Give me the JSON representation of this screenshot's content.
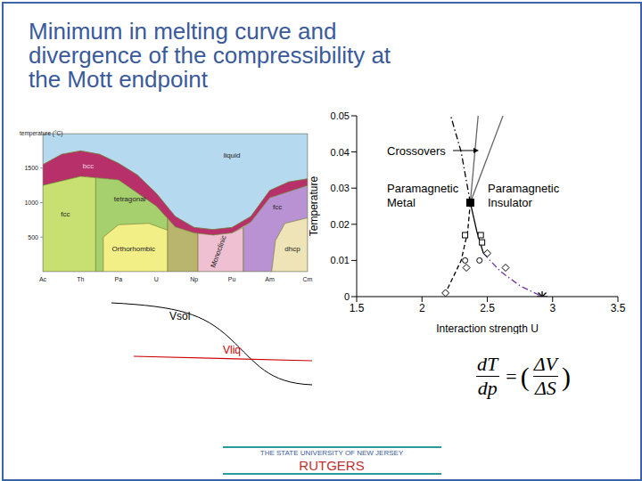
{
  "title": [
    "Minimum in melting curve and",
    "divergence of the compressibility at",
    "the Mott endpoint"
  ],
  "phase_diagram": {
    "y_label": "temperature (°C)",
    "xlim": [
      0,
      7
    ],
    "ylim": [
      0,
      2000
    ],
    "yticks": [
      500,
      1000,
      1500
    ],
    "elements": [
      "Ac",
      "Th",
      "Pa",
      "U",
      "Np",
      "Pu",
      "Am",
      "Cm"
    ],
    "regions": [
      {
        "label": "liquid",
        "color": "#b5d9ee",
        "points": [
          [
            0,
            1550
          ],
          [
            0.5,
            1700
          ],
          [
            1,
            1750
          ],
          [
            1.5,
            1700
          ],
          [
            2,
            1570
          ],
          [
            2.5,
            1400
          ],
          [
            3,
            1135
          ],
          [
            3.5,
            800
          ],
          [
            4,
            640
          ],
          [
            4.5,
            610
          ],
          [
            5,
            640
          ],
          [
            5.5,
            800
          ],
          [
            6,
            1176
          ],
          [
            6.5,
            1300
          ],
          [
            7,
            1345
          ],
          [
            7,
            2000
          ],
          [
            0,
            2000
          ]
        ]
      },
      {
        "label": "bcc",
        "color": "#b8306a",
        "points": [
          [
            0,
            1550
          ],
          [
            0.5,
            1700
          ],
          [
            1,
            1750
          ],
          [
            1.5,
            1700
          ],
          [
            2,
            1570
          ],
          [
            2.5,
            1400
          ],
          [
            3,
            1135
          ],
          [
            3.5,
            800
          ],
          [
            4,
            640
          ],
          [
            4.5,
            610
          ],
          [
            5,
            640
          ],
          [
            5.5,
            800
          ],
          [
            6,
            1176
          ],
          [
            6.5,
            1300
          ],
          [
            7,
            1345
          ],
          [
            7,
            1250
          ],
          [
            6,
            1070
          ],
          [
            5.5,
            720
          ],
          [
            5,
            560
          ],
          [
            4.5,
            530
          ],
          [
            4,
            560
          ],
          [
            3.5,
            650
          ],
          [
            3,
            950
          ],
          [
            2,
            1330
          ],
          [
            1,
            1380
          ],
          [
            0,
            1250
          ]
        ]
      },
      {
        "label": "fcc",
        "color": "#c8df72",
        "points": [
          [
            0,
            0
          ],
          [
            0,
            1250
          ],
          [
            1,
            1380
          ],
          [
            1.4,
            1360
          ],
          [
            1.4,
            0
          ]
        ]
      },
      {
        "label": "tetragonal",
        "color": "#a6cf6e",
        "points": [
          [
            1.4,
            0
          ],
          [
            1.4,
            1360
          ],
          [
            2,
            1330
          ],
          [
            3,
            950
          ],
          [
            3.3,
            770
          ],
          [
            3.3,
            0
          ]
        ]
      },
      {
        "label": "Orthorhombic",
        "color": "#f2ef86",
        "points": [
          [
            1.6,
            0
          ],
          [
            1.6,
            500
          ],
          [
            2,
            680
          ],
          [
            2.8,
            700
          ],
          [
            3.3,
            600
          ],
          [
            3.3,
            0
          ]
        ]
      },
      {
        "color": "#b9b46e",
        "points": [
          [
            3.3,
            0
          ],
          [
            3.3,
            770
          ],
          [
            3.5,
            650
          ],
          [
            4,
            560
          ],
          [
            4.1,
            555
          ],
          [
            4.1,
            0
          ]
        ]
      },
      {
        "label": "Monoclinic",
        "color": "#efc0d2",
        "points": [
          [
            4.1,
            0
          ],
          [
            4.1,
            555
          ],
          [
            4.5,
            530
          ],
          [
            5,
            560
          ],
          [
            5.3,
            640
          ],
          [
            5.3,
            0
          ]
        ]
      },
      {
        "label": "fcc",
        "color": "#b892d2",
        "points": [
          [
            5.3,
            0
          ],
          [
            5.3,
            640
          ],
          [
            5.5,
            720
          ],
          [
            6,
            1070
          ],
          [
            7,
            1250
          ],
          [
            7,
            0
          ]
        ]
      },
      {
        "label": "dhcp",
        "color": "#efe3b8",
        "points": [
          [
            6.05,
            0
          ],
          [
            6.15,
            450
          ],
          [
            6.4,
            700
          ],
          [
            7,
            780
          ],
          [
            7,
            0
          ]
        ]
      }
    ]
  },
  "volume_sketch": {
    "curves": [
      {
        "label": "Vsol",
        "color": "#000000"
      },
      {
        "label": "Vliq",
        "color": "#cc0000"
      }
    ]
  },
  "chart_data": {
    "type": "scatter",
    "x_label": "Interaction strength U",
    "y_label": "Temperature",
    "xlim": [
      1.5,
      3.5
    ],
    "xticks": [
      1.5,
      2,
      2.5,
      3,
      3.5
    ],
    "ylim": [
      0,
      0.05
    ],
    "yticks": [
      0,
      0.01,
      0.02,
      0.03,
      0.04,
      0.05
    ],
    "annotations": [
      "Crossovers",
      "Paramagnetic Metal",
      "Paramagnetic Insulator"
    ],
    "series": [
      {
        "type": "line",
        "color": "#666666",
        "line_style": "solid",
        "marker": "none",
        "x": [
          2.37,
          2.43
        ],
        "values": [
          0.026,
          0.05
        ]
      },
      {
        "type": "line",
        "color": "#666666",
        "line_style": "solid",
        "marker": "none",
        "x": [
          2.37,
          2.62
        ],
        "values": [
          0.026,
          0.05
        ]
      },
      {
        "type": "line",
        "color": "#000000",
        "line_style": "dashdot",
        "marker": "none",
        "x": [
          2.37,
          2.3,
          2.22
        ],
        "values": [
          0.026,
          0.04,
          0.05
        ]
      },
      {
        "type": "line",
        "color": "#000000",
        "line_style": "dashed",
        "marker": "none",
        "x": [
          2.37,
          2.35,
          2.3,
          2.18
        ],
        "values": [
          0.026,
          0.018,
          0.01,
          0.001
        ]
      },
      {
        "type": "line",
        "color": "#000000",
        "line_style": "solid",
        "marker": "none",
        "x": [
          2.37,
          2.42,
          2.47
        ],
        "values": [
          0.026,
          0.018,
          0.012
        ]
      },
      {
        "type": "line",
        "color": "#7030a0",
        "line_style": "dashdot",
        "marker": "none",
        "x": [
          2.47,
          2.6,
          2.75,
          2.92
        ],
        "values": [
          0.012,
          0.007,
          0.003,
          0
        ]
      },
      {
        "type": "scatter",
        "color": "#000000",
        "marker": "diamond",
        "x": [
          2.18,
          2.34,
          2.5,
          2.64
        ],
        "values": [
          0.001,
          0.008,
          0.012,
          0.008
        ]
      },
      {
        "type": "scatter",
        "color": "#000000",
        "marker": "square",
        "x": [
          2.33,
          2.45,
          2.46
        ],
        "values": [
          0.017,
          0.017,
          0.015
        ]
      },
      {
        "type": "scatter",
        "color": "#000000",
        "marker": "circle",
        "x": [
          2.33,
          2.44
        ],
        "values": [
          0.01,
          0.01
        ]
      },
      {
        "type": "scatter",
        "color": "#000000",
        "marker": "filled_square",
        "x": [
          2.37
        ],
        "values": [
          0.026
        ]
      },
      {
        "type": "scatter",
        "color": "#000000",
        "marker": "star",
        "x": [
          2.92
        ],
        "values": [
          0
        ]
      }
    ]
  },
  "equation": {
    "lhs": {
      "numerator": "dT",
      "denominator": "dp"
    },
    "equals": "=",
    "rhs": {
      "open": "(",
      "numerator": "ΔV",
      "denominator": "ΔS",
      "close": ")"
    }
  },
  "footer": {
    "university": "THE STATE UNIVERSITY OF NEW JERSEY",
    "name": "RUTGERS"
  }
}
